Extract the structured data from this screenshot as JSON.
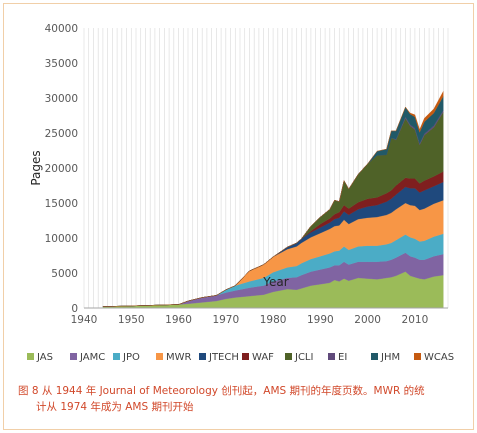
{
  "caption": {
    "line1": "图 8 从 1944 年 Journal of Meteorology 创刊起，AMS 期刊的年度页数。MWR 的统",
    "line2": "计从 1974 年成为 AMS 期刊开始"
  },
  "chart_data": {
    "type": "area",
    "stacked": true,
    "title": "",
    "xlabel": "Year",
    "ylabel": "Pages",
    "xlim": [
      1940,
      2017
    ],
    "ylim": [
      0,
      40000
    ],
    "x_ticks": [
      "1940",
      "1950",
      "1960",
      "1970",
      "1980",
      "1990",
      "2000",
      "2010"
    ],
    "y_ticks": [
      "0",
      "5000",
      "10000",
      "15000",
      "20000",
      "25000",
      "30000",
      "35000",
      "40000"
    ],
    "grid": "vertical",
    "legend_position": "bottom",
    "x": [
      1944,
      1950,
      1955,
      1960,
      1962,
      1965,
      1968,
      1970,
      1972,
      1975,
      1978,
      1980,
      1983,
      1985,
      1986,
      1988,
      1990,
      1992,
      1993,
      1994,
      1995,
      1996,
      1998,
      2000,
      2002,
      2004,
      2005,
      2006,
      2008,
      2009,
      2010,
      2011,
      2012,
      2014,
      2016
    ],
    "series": [
      {
        "name": "JAS",
        "color": "#9bbb59",
        "values": [
          200,
          300,
          400,
          500,
          600,
          800,
          1000,
          1300,
          1500,
          1700,
          1900,
          2300,
          2700,
          2600,
          2800,
          3200,
          3400,
          3600,
          4000,
          3800,
          4200,
          3900,
          4300,
          4200,
          4100,
          4300,
          4400,
          4600,
          5200,
          4600,
          4400,
          4200,
          4100,
          4500,
          4700
        ]
      },
      {
        "name": "JAMC",
        "color": "#8064a2",
        "values": [
          0,
          0,
          0,
          0,
          400,
          700,
          800,
          900,
          1000,
          1200,
          1300,
          1500,
          1600,
          1800,
          1900,
          2000,
          2100,
          2200,
          2100,
          2300,
          2400,
          2300,
          2300,
          2400,
          2500,
          2400,
          2500,
          2600,
          2700,
          2800,
          2800,
          2700,
          2800,
          2900,
          3000
        ]
      },
      {
        "name": "JPO",
        "color": "#4bacc6",
        "values": [
          0,
          0,
          0,
          0,
          0,
          0,
          0,
          400,
          700,
          900,
          1100,
          1300,
          1500,
          1600,
          1700,
          1800,
          1900,
          2000,
          2000,
          2100,
          2200,
          2100,
          2200,
          2300,
          2300,
          2400,
          2400,
          2500,
          2600,
          2700,
          2700,
          2600,
          2700,
          2800,
          2900
        ]
      },
      {
        "name": "MWR",
        "color": "#f79646",
        "values": [
          0,
          0,
          0,
          0,
          0,
          0,
          0,
          0,
          0,
          1500,
          1900,
          2200,
          2600,
          2800,
          2900,
          3100,
          3300,
          3500,
          3600,
          3600,
          3800,
          3700,
          3900,
          4000,
          4100,
          4200,
          4300,
          4400,
          4500,
          4600,
          4700,
          4500,
          4600,
          4700,
          4800
        ]
      },
      {
        "name": "JTECH",
        "color": "#1f497d",
        "values": [
          0,
          0,
          0,
          0,
          0,
          0,
          0,
          0,
          0,
          0,
          0,
          0,
          300,
          500,
          600,
          700,
          800,
          900,
          1000,
          1100,
          1200,
          1300,
          1400,
          1600,
          1700,
          1900,
          2000,
          2100,
          2300,
          2400,
          2500,
          2500,
          2600,
          2500,
          2600
        ]
      },
      {
        "name": "WAF",
        "color": "#7f1f1f",
        "values": [
          0,
          0,
          0,
          0,
          0,
          0,
          0,
          0,
          0,
          0,
          0,
          0,
          0,
          0,
          0,
          200,
          500,
          600,
          700,
          800,
          900,
          900,
          1000,
          1100,
          1100,
          1200,
          1200,
          1300,
          1300,
          1400,
          1400,
          1300,
          1400,
          1400,
          1500
        ]
      },
      {
        "name": "JCLI",
        "color": "#4f6228",
        "values": [
          0,
          0,
          0,
          0,
          0,
          0,
          0,
          0,
          0,
          0,
          0,
          0,
          0,
          0,
          0,
          700,
          1000,
          1300,
          2000,
          1500,
          3500,
          2800,
          4000,
          5000,
          6000,
          5500,
          7500,
          6500,
          8500,
          7500,
          7000,
          5500,
          6500,
          7000,
          8500
        ]
      },
      {
        "name": "EI",
        "color": "#604a7b",
        "values": [
          0,
          0,
          0,
          0,
          0,
          0,
          0,
          0,
          0,
          0,
          0,
          0,
          0,
          0,
          0,
          0,
          0,
          0,
          0,
          0,
          0,
          0,
          0,
          0,
          0,
          0,
          0,
          100,
          200,
          200,
          200,
          200,
          200,
          250,
          250
        ]
      },
      {
        "name": "JHM",
        "color": "#215968",
        "values": [
          0,
          0,
          0,
          0,
          0,
          0,
          0,
          0,
          0,
          0,
          0,
          0,
          0,
          0,
          0,
          0,
          0,
          0,
          0,
          0,
          0,
          0,
          0,
          0,
          600,
          800,
          1000,
          1200,
          1400,
          1500,
          1600,
          1600,
          1700,
          1800,
          2000
        ]
      },
      {
        "name": "WCAS",
        "color": "#c55a11",
        "values": [
          0,
          0,
          0,
          0,
          0,
          0,
          0,
          0,
          0,
          0,
          0,
          0,
          0,
          0,
          0,
          0,
          0,
          0,
          0,
          0,
          0,
          0,
          0,
          0,
          0,
          0,
          0,
          0,
          0,
          150,
          300,
          400,
          500,
          600,
          700
        ]
      }
    ]
  }
}
